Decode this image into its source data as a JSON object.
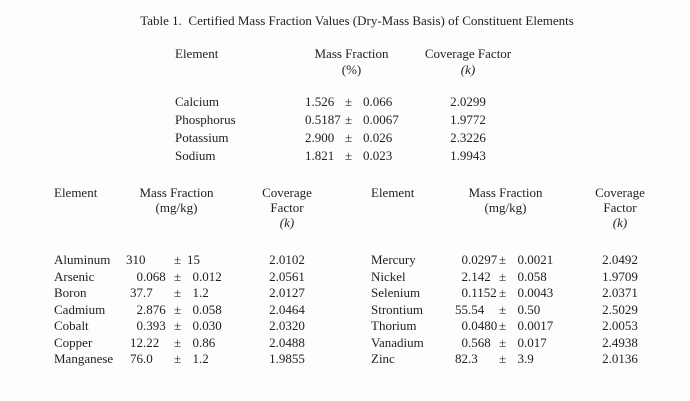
{
  "pm_symbol": "±",
  "colors": {
    "background": "#fcfdfd",
    "text": "#1f1f1f"
  },
  "title": "Table 1.  Certified Mass Fraction Values (Dry-Mass Basis) of Constituent Elements",
  "percent_table": {
    "headers": {
      "element": "Element",
      "mass_fraction": "Mass Fraction",
      "unit": "(%)",
      "coverage": "Coverage Factor",
      "coverage_unit": "(k)"
    },
    "rows": [
      {
        "element": "Calcium",
        "value": "1.526",
        "uncertainty": "0.066",
        "k": "2.0299"
      },
      {
        "element": "Phosphorus",
        "value": "0.5187",
        "uncertainty": "0.0067",
        "k": "1.9772"
      },
      {
        "element": "Potassium",
        "value": "2.900",
        "uncertainty": "0.026",
        "k": "2.3226"
      },
      {
        "element": "Sodium",
        "value": "1.821",
        "uncertainty": "0.023",
        "k": "1.9943"
      }
    ]
  },
  "mgkg_left": {
    "headers": {
      "element": "Element",
      "mass_fraction": "Mass Fraction",
      "unit": "(mg/kg)",
      "coverage_line1": "Coverage",
      "coverage_line2": "Factor",
      "coverage_unit": "(k)"
    },
    "rows": [
      {
        "element": "Aluminum",
        "value": "310",
        "uncertainty": "15",
        "k": "2.0102"
      },
      {
        "element": "Arsenic",
        "value": "0.068",
        "uncertainty": "0.012",
        "k": "2.0561"
      },
      {
        "element": "Boron",
        "value": "37.7",
        "uncertainty": "1.2",
        "k": "2.0127"
      },
      {
        "element": "Cadmium",
        "value": "2.876",
        "uncertainty": "0.058",
        "k": "2.0464"
      },
      {
        "element": "Cobalt",
        "value": "0.393",
        "uncertainty": "0.030",
        "k": "2.0320"
      },
      {
        "element": "Copper",
        "value": "12.22",
        "uncertainty": "0.86",
        "k": "2.0488"
      },
      {
        "element": "Manganese",
        "value": "76.0",
        "uncertainty": "1.2",
        "k": "1.9855"
      }
    ]
  },
  "mgkg_right": {
    "headers": {
      "element": "Element",
      "mass_fraction": "Mass Fraction",
      "unit": "(mg/kg)",
      "coverage_line1": "Coverage",
      "coverage_line2": "Factor",
      "coverage_unit": "(k)"
    },
    "rows": [
      {
        "element": "Mercury",
        "value": "0.0297",
        "uncertainty": "0.0021",
        "k": "2.0492"
      },
      {
        "element": "Nickel",
        "value": "2.142",
        "uncertainty": "0.058",
        "k": "1.9709"
      },
      {
        "element": "Selenium",
        "value": "0.1152",
        "uncertainty": "0.0043",
        "k": "2.0371"
      },
      {
        "element": "Strontium",
        "value": "55.54",
        "uncertainty": "0.50",
        "k": "2.5029"
      },
      {
        "element": "Thorium",
        "value": "0.0480",
        "uncertainty": "0.0017",
        "k": "2.0053"
      },
      {
        "element": "Vanadium",
        "value": "0.568",
        "uncertainty": "0.017",
        "k": "2.4938"
      },
      {
        "element": "Zinc",
        "value": "82.3",
        "uncertainty": "3.9",
        "k": "2.0136"
      }
    ]
  }
}
